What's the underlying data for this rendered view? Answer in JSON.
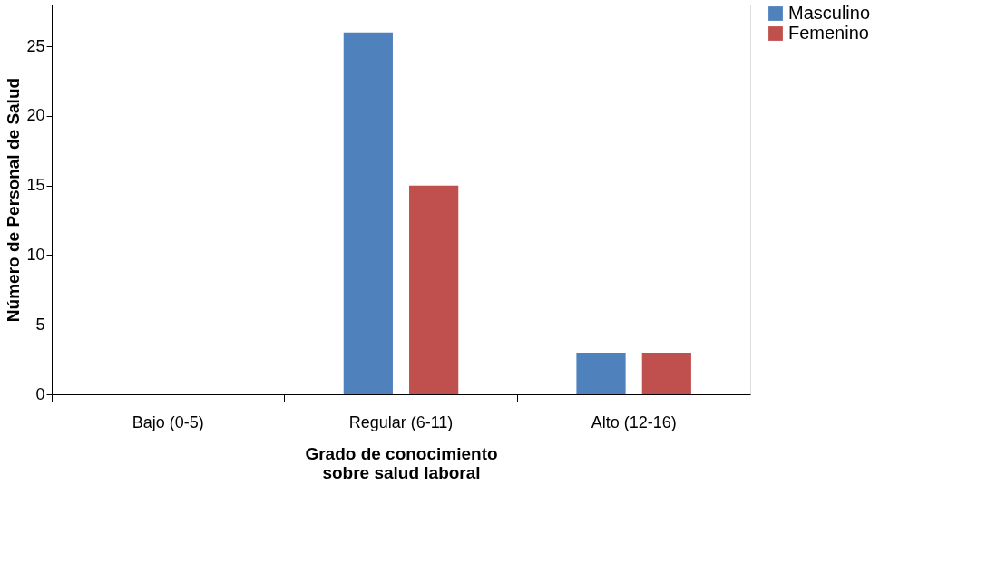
{
  "chart_data": {
    "type": "bar",
    "xlabel": "Grado de conocimiento\nsobre salud laboral",
    "ylabel": "Número de Personal de Salud",
    "categories": [
      "Bajo (0-5)",
      "Regular (6-11)",
      "Alto (12-16)"
    ],
    "series": [
      {
        "name": "Masculino",
        "color": "#4f81bd",
        "values": [
          0,
          26,
          3
        ]
      },
      {
        "name": "Femenino",
        "color": "#c0504d",
        "values": [
          0,
          15,
          3
        ]
      }
    ],
    "ylim": [
      0,
      28
    ],
    "yticks": [
      0,
      5,
      10,
      15,
      20,
      25
    ],
    "grid": false,
    "legend": "right"
  }
}
